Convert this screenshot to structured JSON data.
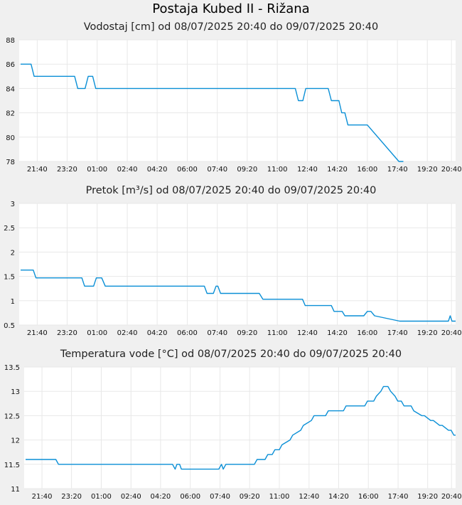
{
  "page": {
    "title": "Postaja Kubed II - Rižana"
  },
  "colors": {
    "line": "#0a8fd6",
    "background": "#f0f0f0",
    "plot_background": "#ffffff",
    "grid": "#e8e8e8"
  },
  "chart_data": [
    {
      "type": "line",
      "title": "Vodostaj [cm] od 08/07/2025 20:40 do 09/07/2025 20:40",
      "xlabel": "",
      "ylabel": "",
      "x_range": [
        20.67,
        44.9
      ],
      "ylim": [
        78,
        88
      ],
      "y_ticks": [
        "78",
        "80",
        "82",
        "84",
        "86",
        "88"
      ],
      "y_tick_values": [
        78,
        80,
        82,
        84,
        86,
        88
      ],
      "x_tick_labels": [
        "21:40",
        "23:20",
        "01:00",
        "02:40",
        "04:20",
        "06:00",
        "07:40",
        "09:20",
        "11:00",
        "12:40",
        "14:20",
        "16:00",
        "17:40",
        "19:20",
        "20:40"
      ],
      "x_tick_values": [
        21.67,
        23.33,
        25.0,
        26.67,
        28.33,
        30.0,
        31.67,
        33.33,
        35.0,
        36.67,
        38.33,
        40.0,
        41.67,
        43.33,
        44.67
      ],
      "grid": true,
      "series": [
        {
          "x": [
            20.75,
            21.33,
            21.5,
            23.75,
            23.92,
            24.33,
            24.5,
            24.75,
            24.92,
            36.0,
            36.17,
            36.42,
            36.58,
            37.83,
            38.0,
            38.42,
            38.58,
            38.75,
            38.92,
            40.0,
            41.75,
            41.83,
            41.92,
            42.0
          ],
          "y": [
            86,
            86,
            85,
            85,
            84,
            84,
            85,
            85,
            84,
            84,
            83,
            83,
            84,
            84,
            83,
            83,
            82,
            82,
            81,
            81,
            78,
            78,
            78,
            78
          ]
        }
      ]
    },
    {
      "type": "line",
      "title": "Pretok [m³/s] od 08/07/2025 20:40 do 09/07/2025 20:40",
      "xlabel": "",
      "ylabel": "",
      "x_range": [
        20.67,
        44.9
      ],
      "ylim": [
        0.5,
        3
      ],
      "y_ticks": [
        "0.5",
        "1",
        "1.5",
        "2",
        "2.5",
        "3"
      ],
      "y_tick_values": [
        0.5,
        1,
        1.5,
        2,
        2.5,
        3
      ],
      "x_tick_labels": [
        "21:40",
        "23:20",
        "01:00",
        "02:40",
        "04:20",
        "06:00",
        "07:40",
        "09:20",
        "11:00",
        "12:40",
        "14:20",
        "16:00",
        "17:40",
        "19:20",
        "20:40"
      ],
      "x_tick_values": [
        21.67,
        23.33,
        25.0,
        26.67,
        28.33,
        30.0,
        31.67,
        33.33,
        35.0,
        36.67,
        38.33,
        40.0,
        41.67,
        43.33,
        44.67
      ],
      "grid": true,
      "series": [
        {
          "x": [
            20.75,
            21.45,
            21.6,
            24.15,
            24.3,
            24.8,
            24.95,
            25.25,
            25.45,
            30.95,
            31.1,
            31.45,
            31.6,
            31.7,
            31.85,
            34.0,
            34.2,
            36.4,
            36.55,
            38.0,
            38.15,
            38.6,
            38.75,
            39.8,
            40.0,
            40.2,
            40.4,
            41.8,
            44.5,
            44.6,
            44.7,
            44.9
          ],
          "y": [
            1.63,
            1.63,
            1.47,
            1.47,
            1.3,
            1.3,
            1.47,
            1.47,
            1.3,
            1.3,
            1.15,
            1.15,
            1.3,
            1.3,
            1.15,
            1.15,
            1.03,
            1.03,
            0.9,
            0.9,
            0.78,
            0.78,
            0.69,
            0.69,
            0.78,
            0.78,
            0.69,
            0.58,
            0.58,
            0.69,
            0.58,
            0.58
          ]
        }
      ]
    },
    {
      "type": "line",
      "title": "Temperatura vode [°C] od 08/07/2025 20:40 do 09/07/2025 20:40",
      "xlabel": "",
      "ylabel": "",
      "x_range": [
        20.67,
        44.9
      ],
      "ylim": [
        11,
        13.5
      ],
      "y_ticks": [
        "11",
        "11.5",
        "12",
        "12.5",
        "13",
        "13.5"
      ],
      "y_tick_values": [
        11,
        11.5,
        12,
        12.5,
        13,
        13.5
      ],
      "x_tick_labels": [
        "21:40",
        "23:20",
        "01:00",
        "02:40",
        "04:20",
        "06:00",
        "07:40",
        "09:20",
        "11:00",
        "12:40",
        "14:20",
        "16:00",
        "17:40",
        "19:20",
        "20:40"
      ],
      "x_tick_values": [
        21.67,
        23.33,
        25.0,
        26.67,
        28.33,
        30.0,
        31.67,
        33.33,
        35.0,
        36.67,
        38.33,
        40.0,
        41.67,
        43.33,
        44.67
      ],
      "grid": true,
      "series": [
        {
          "x": [
            20.75,
            22.45,
            22.6,
            29.0,
            29.15,
            29.25,
            29.4,
            29.5,
            29.6,
            31.6,
            31.75,
            31.85,
            32.0,
            33.6,
            33.75,
            34.2,
            34.35,
            34.6,
            34.75,
            35.0,
            35.15,
            35.6,
            35.75,
            36.2,
            36.35,
            36.8,
            36.95,
            37.6,
            37.75,
            38.6,
            38.75,
            39.8,
            39.95,
            40.3,
            40.45,
            40.7,
            40.85,
            41.1,
            41.25,
            41.5,
            41.65,
            41.85,
            42.0,
            42.4,
            42.55,
            43.0,
            43.15,
            43.5,
            43.65,
            44.0,
            44.15,
            44.5,
            44.65,
            44.8,
            44.9
          ],
          "y": [
            11.6,
            11.6,
            11.5,
            11.5,
            11.4,
            11.5,
            11.5,
            11.4,
            11.4,
            11.4,
            11.5,
            11.4,
            11.5,
            11.5,
            11.6,
            11.6,
            11.7,
            11.7,
            11.8,
            11.8,
            11.9,
            12.0,
            12.1,
            12.2,
            12.3,
            12.4,
            12.5,
            12.5,
            12.6,
            12.6,
            12.7,
            12.7,
            12.8,
            12.8,
            12.9,
            13.0,
            13.1,
            13.1,
            13.0,
            12.9,
            12.8,
            12.8,
            12.7,
            12.7,
            12.6,
            12.5,
            12.5,
            12.4,
            12.4,
            12.3,
            12.3,
            12.2,
            12.2,
            12.1,
            12.1
          ]
        }
      ]
    }
  ]
}
